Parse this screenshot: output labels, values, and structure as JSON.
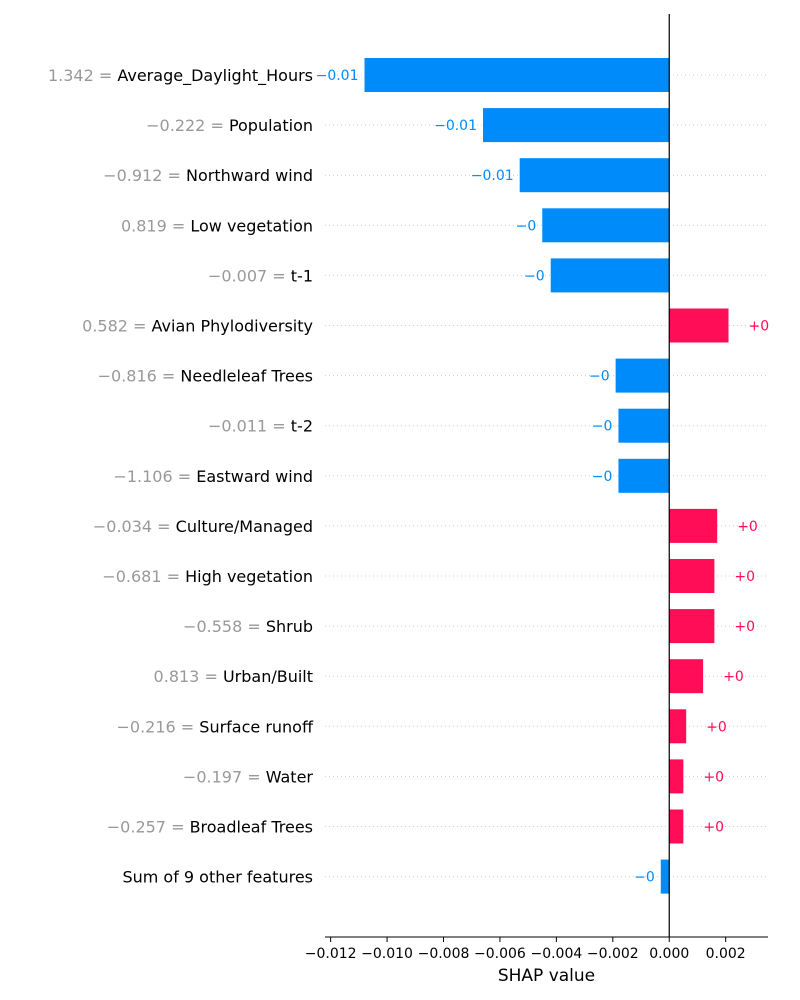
{
  "chart_data": {
    "type": "bar",
    "orientation": "horizontal",
    "xlabel": "SHAP value",
    "xlim": [
      -0.0122,
      0.0035
    ],
    "xticks": [
      -0.012,
      -0.01,
      -0.008,
      -0.006,
      -0.004,
      -0.002,
      0.0,
      0.002
    ],
    "xtick_labels": [
      "−0.012",
      "−0.010",
      "−0.008",
      "−0.006",
      "−0.004",
      "−0.002",
      "0.000",
      "0.002"
    ],
    "colors": {
      "positive": "#ff0d57",
      "negative": "#008bfb",
      "feature_value_text": "#999999",
      "grid": "#cccccc"
    },
    "features": [
      {
        "feature_value": "1.342",
        "name": "Average_Daylight_Hours",
        "shap": -0.0108,
        "label": "−0.01"
      },
      {
        "feature_value": "−0.222",
        "name": "Population",
        "shap": -0.0066,
        "label": "−0.01"
      },
      {
        "feature_value": "−0.912",
        "name": "Northward wind",
        "shap": -0.0053,
        "label": "−0.01"
      },
      {
        "feature_value": "0.819",
        "name": "Low vegetation",
        "shap": -0.0045,
        "label": "−0"
      },
      {
        "feature_value": "−0.007",
        "name": "t-1",
        "shap": -0.0042,
        "label": "−0"
      },
      {
        "feature_value": "0.582",
        "name": "Avian Phylodiversity",
        "shap": 0.0021,
        "label": "+0"
      },
      {
        "feature_value": "−0.816",
        "name": "Needleleaf Trees",
        "shap": -0.0019,
        "label": "−0"
      },
      {
        "feature_value": "−0.011",
        "name": "t-2",
        "shap": -0.0018,
        "label": "−0"
      },
      {
        "feature_value": "−1.106",
        "name": "Eastward wind",
        "shap": -0.0018,
        "label": "−0"
      },
      {
        "feature_value": "−0.034",
        "name": "Culture/Managed",
        "shap": 0.0017,
        "label": "+0"
      },
      {
        "feature_value": "−0.681",
        "name": "High vegetation",
        "shap": 0.0016,
        "label": "+0"
      },
      {
        "feature_value": "−0.558",
        "name": "Shrub",
        "shap": 0.0016,
        "label": "+0"
      },
      {
        "feature_value": "0.813",
        "name": "Urban/Built",
        "shap": 0.0012,
        "label": "+0"
      },
      {
        "feature_value": "−0.216",
        "name": "Surface runoff",
        "shap": 0.0006,
        "label": "+0"
      },
      {
        "feature_value": "−0.197",
        "name": "Water",
        "shap": 0.0005,
        "label": "+0"
      },
      {
        "feature_value": "−0.257",
        "name": "Broadleaf Trees",
        "shap": 0.0005,
        "label": "+0"
      },
      {
        "feature_value": "",
        "name": "Sum of 9 other features",
        "shap": -0.0003,
        "label": "−0"
      }
    ]
  }
}
